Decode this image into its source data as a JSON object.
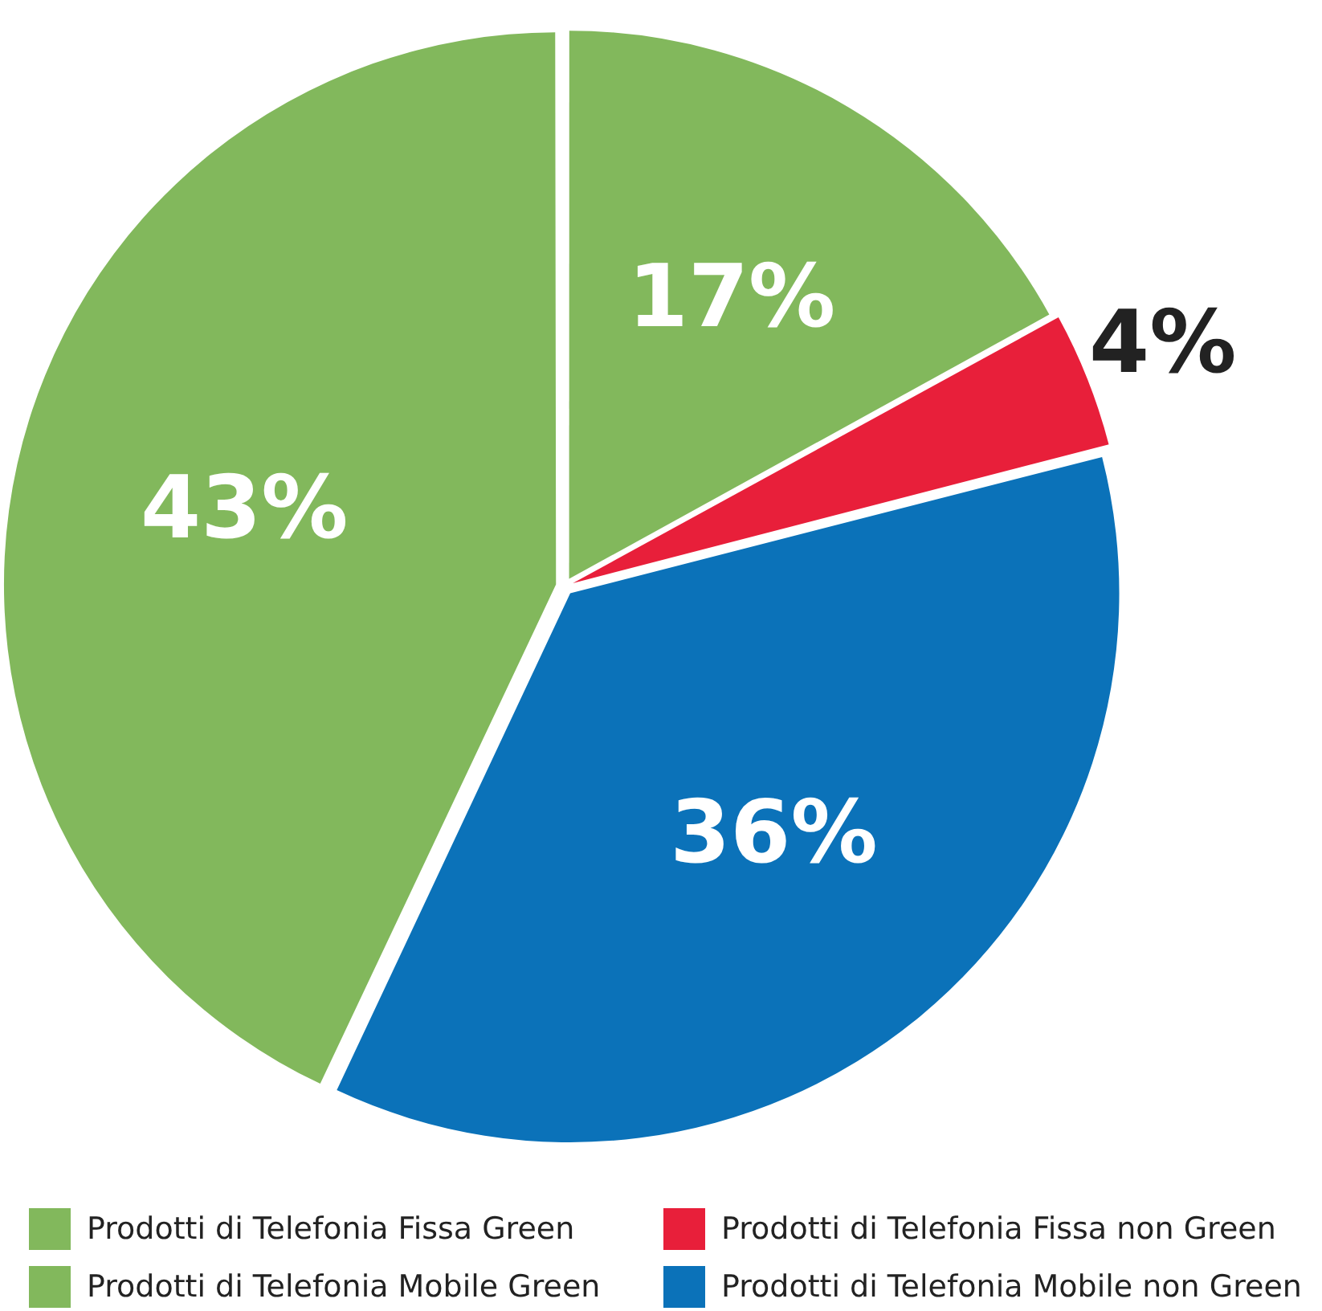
{
  "chart_data": {
    "type": "pie",
    "categories": [
      "Prodotti di Telefonia Fissa Green",
      "Prodotti di Telefonia Fissa non Green",
      "Prodotti di Telefonia Mobile non Green",
      "Prodotti di Telefonia Mobile Green"
    ],
    "values": [
      17,
      4,
      36,
      43
    ],
    "value_labels": [
      "17%",
      "4%",
      "36%",
      "43%"
    ],
    "colors": [
      "#82b85c",
      "#e81f3a",
      "#0b72b9",
      "#82b85c"
    ],
    "legend": "bottom"
  }
}
